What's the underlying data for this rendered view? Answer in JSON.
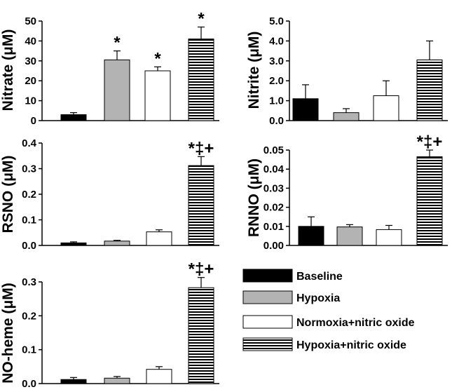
{
  "chart_data": [
    {
      "type": "bar",
      "panel": "nitrate",
      "ylabel": "Nitrate (μM)",
      "ylim": [
        0,
        50
      ],
      "yticks": [
        "0",
        "10",
        "20",
        "30",
        "40",
        "50"
      ],
      "categories": [
        "Baseline",
        "Hypoxia",
        "Normoxia+nitric oxide",
        "Hypoxia+nitric oxide"
      ],
      "values": [
        3.0,
        30.5,
        25.0,
        41.0
      ],
      "errors": [
        1.0,
        4.5,
        2.0,
        6.0
      ],
      "significance": [
        "",
        "*",
        "*",
        "*"
      ]
    },
    {
      "type": "bar",
      "panel": "nitrite",
      "ylabel": "Nitrite (μM)",
      "ylim": [
        0,
        5
      ],
      "yticks": [
        "0.0",
        "1.0",
        "2.0",
        "3.0",
        "4.0",
        "5.0"
      ],
      "categories": [
        "Baseline",
        "Hypoxia",
        "Normoxia+nitric oxide",
        "Hypoxia+nitric oxide"
      ],
      "values": [
        1.1,
        0.4,
        1.25,
        3.05
      ],
      "errors": [
        0.7,
        0.2,
        0.75,
        0.95
      ],
      "significance": [
        "",
        "",
        "",
        ""
      ]
    },
    {
      "type": "bar",
      "panel": "rsno",
      "ylabel": "RSNO (μM)",
      "ylim": [
        0,
        0.4
      ],
      "yticks": [
        "0.0",
        "0.1",
        "0.2",
        "0.3",
        "0.4"
      ],
      "categories": [
        "Baseline",
        "Hypoxia",
        "Normoxia+nitric oxide",
        "Hypoxia+nitric oxide"
      ],
      "values": [
        0.01,
        0.017,
        0.053,
        0.312
      ],
      "errors": [
        0.004,
        0.003,
        0.008,
        0.035
      ],
      "significance": [
        "",
        "",
        "",
        "*‡+"
      ]
    },
    {
      "type": "bar",
      "panel": "rnno",
      "ylabel": "RNNO (μM)",
      "ylim": [
        0,
        0.05
      ],
      "yticks": [
        "0.00",
        "0.01",
        "0.02",
        "0.03",
        "0.04",
        "0.05"
      ],
      "categories": [
        "Baseline",
        "Hypoxia",
        "Normoxia+nitric oxide",
        "Hypoxia+nitric oxide"
      ],
      "values": [
        0.01,
        0.0097,
        0.0083,
        0.0465
      ],
      "errors": [
        0.005,
        0.0012,
        0.0022,
        0.0035
      ],
      "significance": [
        "",
        "",
        "",
        "*‡+"
      ]
    },
    {
      "type": "bar",
      "panel": "no-heme",
      "ylabel": "NO-heme (μM)",
      "ylim": [
        0,
        0.35
      ],
      "yticks": [
        "0.0",
        "0.1",
        "0.2",
        "0.3"
      ],
      "categories": [
        "Baseline",
        "Hypoxia",
        "Normoxia+nitric oxide",
        "Hypoxia+nitric oxide"
      ],
      "values": [
        0.012,
        0.016,
        0.042,
        0.283
      ],
      "errors": [
        0.006,
        0.005,
        0.008,
        0.03
      ],
      "significance": [
        "",
        "",
        "",
        "*‡+"
      ]
    }
  ],
  "legend": {
    "placement": "bottom-right",
    "items": [
      {
        "label": "Baseline",
        "style": "black"
      },
      {
        "label": "Hypoxia",
        "style": "gray"
      },
      {
        "label": "Normoxia+nitric oxide",
        "style": "white"
      },
      {
        "label": "Hypoxia+nitric oxide",
        "style": "striped"
      }
    ]
  },
  "colors": {
    "baseline": "#000000",
    "hypoxia": "#b3b3b3",
    "normoxia_no": "#ffffff",
    "hypoxia_no_stripe": "#000000",
    "axis": "#000000"
  }
}
